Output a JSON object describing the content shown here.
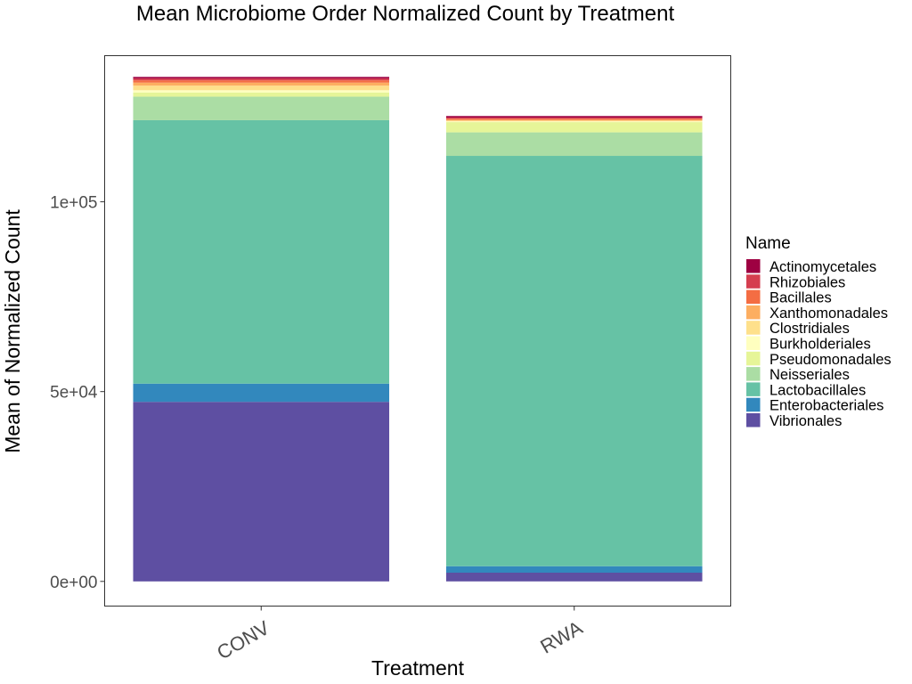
{
  "chart_data": {
    "type": "bar",
    "stacked": true,
    "title": "Mean Microbiome Order Normalized Count by Treatment",
    "xlabel": "Treatment",
    "ylabel": "Mean of Normalized Count",
    "categories": [
      "CONV",
      "RWA"
    ],
    "ylim": [
      -6500,
      138500
    ],
    "yticks": [
      0,
      50000,
      100000
    ],
    "ytick_labels": [
      "0e+00",
      "5e+04",
      "1e+05"
    ],
    "legend_title": "Name",
    "legend_position": "right",
    "grid": false,
    "series": [
      {
        "name": "Vibrionales",
        "color": "#5E4FA2",
        "values": [
          47300,
          2300
        ]
      },
      {
        "name": "Enterobacteriales",
        "color": "#3288BD",
        "values": [
          4800,
          1700
        ]
      },
      {
        "name": "Lactobacillales",
        "color": "#66C2A5",
        "values": [
          69400,
          108100
        ]
      },
      {
        "name": "Neisseriales",
        "color": "#ABDDA4",
        "values": [
          6200,
          6200
        ]
      },
      {
        "name": "Pseudomonadales",
        "color": "#E6F598",
        "values": [
          1100,
          2700
        ]
      },
      {
        "name": "Burkholderiales",
        "color": "#FFFFBF",
        "values": [
          600,
          200
        ]
      },
      {
        "name": "Clostridiales",
        "color": "#FEE08B",
        "values": [
          1200,
          200
        ]
      },
      {
        "name": "Xanthomonadales",
        "color": "#FDAE61",
        "values": [
          800,
          200
        ]
      },
      {
        "name": "Bacillales",
        "color": "#F46D43",
        "values": [
          600,
          300
        ]
      },
      {
        "name": "Rhizobiales",
        "color": "#D53E4F",
        "values": [
          500,
          300
        ]
      },
      {
        "name": "Actinomycetales",
        "color": "#9E0142",
        "values": [
          400,
          400
        ]
      }
    ]
  }
}
